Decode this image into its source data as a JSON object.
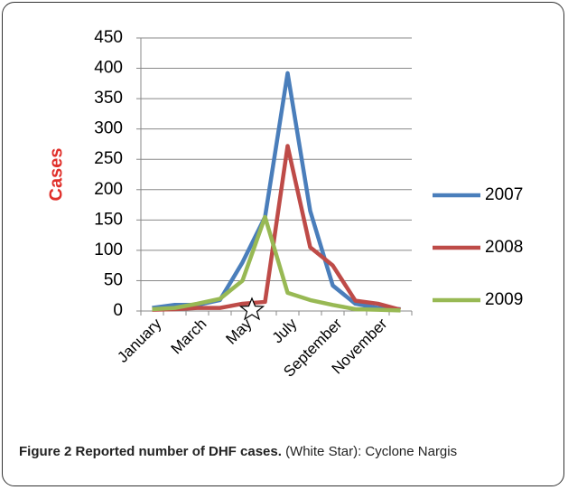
{
  "chart_data": {
    "type": "line",
    "y_label": "Cases",
    "categories": [
      "January",
      null,
      "March",
      null,
      "May",
      null,
      "July",
      null,
      "September",
      null,
      "November",
      null
    ],
    "series": [
      {
        "name": "2007",
        "color": "#4a7ebb",
        "values": [
          5,
          10,
          10,
          18,
          80,
          155,
          392,
          165,
          42,
          12,
          5,
          3
        ]
      },
      {
        "name": "2008",
        "color": "#be4b48",
        "values": [
          2,
          3,
          5,
          5,
          12,
          15,
          272,
          105,
          75,
          17,
          12,
          2
        ]
      },
      {
        "name": "2009",
        "color": "#98b954",
        "values": [
          3,
          5,
          12,
          20,
          50,
          155,
          30,
          18,
          10,
          3,
          2,
          1
        ]
      }
    ],
    "ylim": [
      0,
      450
    ],
    "yticks": [
      0,
      50,
      100,
      150,
      200,
      250,
      300,
      350,
      400,
      450
    ],
    "grid": true,
    "legend": "right"
  },
  "caption": {
    "bold": "Figure 2 Reported number of DHF cases.",
    "text": "(White Star): Cyclone Nargis"
  }
}
